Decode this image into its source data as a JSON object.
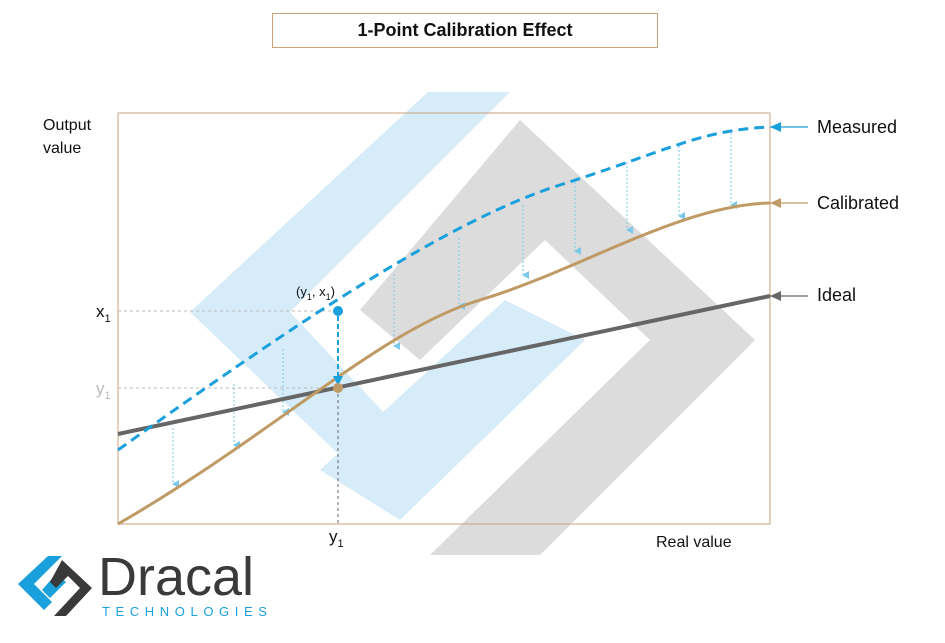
{
  "title": "1-Point Calibration  Effect",
  "axes": {
    "ylabel_line1": "Output",
    "ylabel_line2": "value",
    "xlabel": "Real value"
  },
  "ticks": {
    "x1": "x",
    "x1_sub": "1",
    "y1_left": "y",
    "y1_left_sub": "1",
    "y1_bottom": "y",
    "y1_bottom_sub": "1"
  },
  "point_label": {
    "open": "(y",
    "sub1": "1",
    "mid": ", x",
    "sub2": "1",
    "close": ")"
  },
  "legend": {
    "measured": "Measured",
    "calibrated": "Calibrated",
    "ideal": "Ideal"
  },
  "colors": {
    "measured": "#1aa0dc",
    "calibrated": "#c09a64",
    "ideal": "#666666",
    "arrows": "#7cc8ea",
    "frame": "#c9a27a"
  },
  "logo": {
    "word": "Dracal",
    "sub": "TECHNOLOGIES"
  }
}
